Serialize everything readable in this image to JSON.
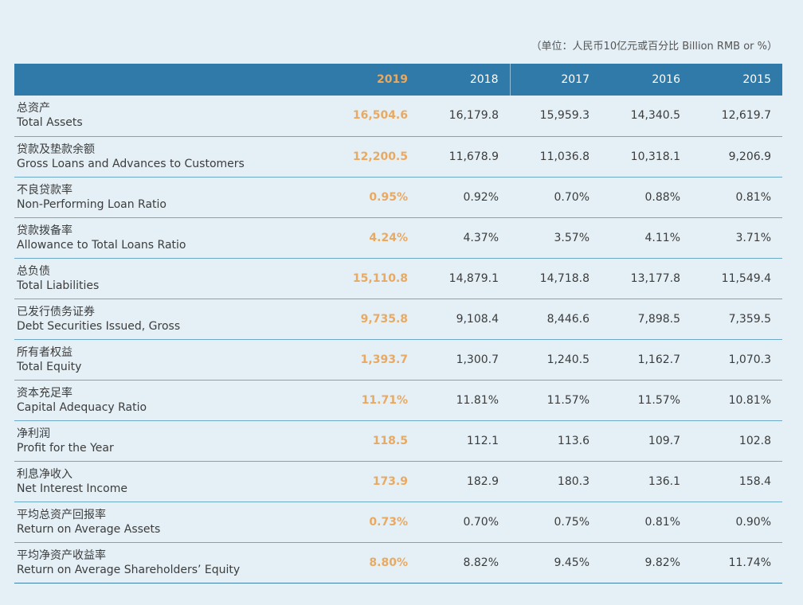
{
  "unit_note": "（单位：人民币10亿元或百分比 Billion RMB or %）",
  "years": [
    "2019",
    "2018",
    "2017",
    "2016",
    "2015"
  ],
  "rows": [
    {
      "zh": "总资产",
      "en": "Total Assets",
      "values": [
        "16,504.6",
        "16,179.8",
        "15,959.3",
        "14,340.5",
        "12,619.7"
      ]
    },
    {
      "zh": "贷款及垫款余额",
      "en": "Gross Loans and Advances to Customers",
      "values": [
        "12,200.5",
        "11,678.9",
        "11,036.8",
        "10,318.1",
        "9,206.9"
      ]
    },
    {
      "zh": "不良贷款率",
      "en": "Non-Performing Loan Ratio",
      "values": [
        "0.95%",
        "0.92%",
        "0.70%",
        "0.88%",
        "0.81%"
      ]
    },
    {
      "zh": "贷款拨备率",
      "en": "Allowance to Total Loans Ratio",
      "values": [
        "4.24%",
        "4.37%",
        "3.57%",
        "4.11%",
        "3.71%"
      ]
    },
    {
      "zh": "总负债",
      "en": "Total Liabilities",
      "values": [
        "15,110.8",
        "14,879.1",
        "14,718.8",
        "13,177.8",
        "11,549.4"
      ]
    },
    {
      "zh": "已发行债务证券",
      "en": "Debt Securities Issued, Gross",
      "values": [
        "9,735.8",
        "9,108.4",
        "8,446.6",
        "7,898.5",
        "7,359.5"
      ]
    },
    {
      "zh": "所有者权益",
      "en": "Total Equity",
      "values": [
        "1,393.7",
        "1,300.7",
        "1,240.5",
        "1,162.7",
        "1,070.3"
      ]
    },
    {
      "zh": "资本充足率",
      "en": "Capital Adequacy Ratio",
      "values": [
        "11.71%",
        "11.81%",
        "11.57%",
        "11.57%",
        "10.81%"
      ]
    },
    {
      "zh": "净利润",
      "en": "Profit for the Year",
      "values": [
        "118.5",
        "112.1",
        "113.6",
        "109.7",
        "102.8"
      ]
    },
    {
      "zh": "利息净收入",
      "en": "Net Interest Income",
      "values": [
        "173.9",
        "182.9",
        "180.3",
        "136.1",
        "158.4"
      ]
    },
    {
      "zh": "平均总资产回报率",
      "en": "Return on Average Assets",
      "values": [
        "0.73%",
        "0.70%",
        "0.75%",
        "0.81%",
        "0.90%"
      ]
    },
    {
      "zh": "平均净资产收益率",
      "en": "Return on Average Shareholders’ Equity",
      "values": [
        "8.80%",
        "8.82%",
        "9.45%",
        "9.82%",
        "11.74%"
      ]
    }
  ]
}
